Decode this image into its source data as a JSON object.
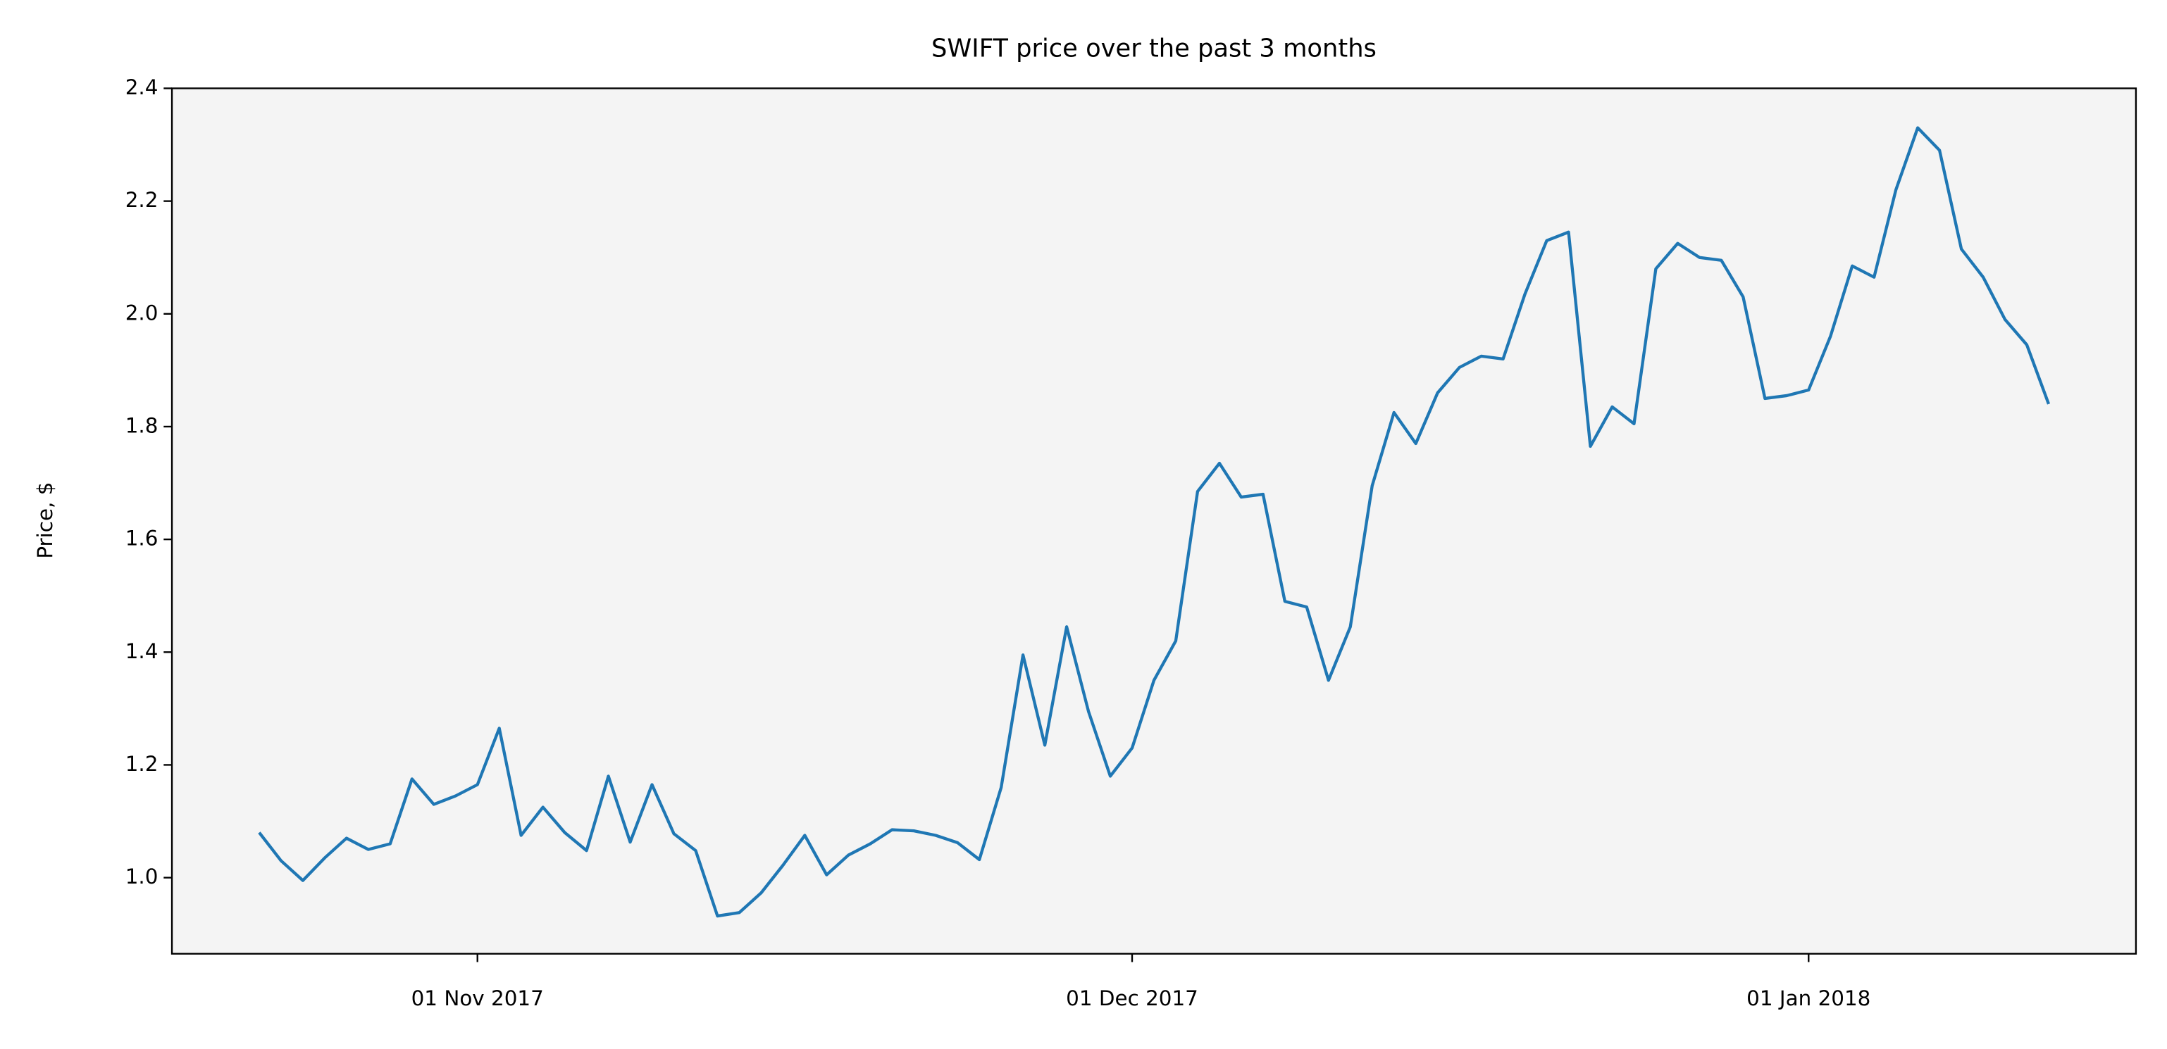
{
  "chart_data": {
    "type": "line",
    "title": "SWIFT price over the past 3 months",
    "ylabel": "Price, $",
    "x": [
      "2017-10-22",
      "2017-10-23",
      "2017-10-24",
      "2017-10-25",
      "2017-10-26",
      "2017-10-27",
      "2017-10-28",
      "2017-10-29",
      "2017-10-30",
      "2017-10-31",
      "2017-11-01",
      "2017-11-02",
      "2017-11-03",
      "2017-11-04",
      "2017-11-05",
      "2017-11-06",
      "2017-11-07",
      "2017-11-08",
      "2017-11-09",
      "2017-11-10",
      "2017-11-11",
      "2017-11-12",
      "2017-11-13",
      "2017-11-14",
      "2017-11-15",
      "2017-11-16",
      "2017-11-17",
      "2017-11-18",
      "2017-11-19",
      "2017-11-20",
      "2017-11-21",
      "2017-11-22",
      "2017-11-23",
      "2017-11-24",
      "2017-11-25",
      "2017-11-26",
      "2017-11-27",
      "2017-11-28",
      "2017-11-29",
      "2017-11-30",
      "2017-12-01",
      "2017-12-02",
      "2017-12-03",
      "2017-12-04",
      "2017-12-05",
      "2017-12-06",
      "2017-12-07",
      "2017-12-08",
      "2017-12-09",
      "2017-12-10",
      "2017-12-11",
      "2017-12-12",
      "2017-12-13",
      "2017-12-14",
      "2017-12-15",
      "2017-12-16",
      "2017-12-17",
      "2017-12-18",
      "2017-12-19",
      "2017-12-20",
      "2017-12-21",
      "2017-12-22",
      "2017-12-23",
      "2017-12-24",
      "2017-12-25",
      "2017-12-26",
      "2017-12-27",
      "2017-12-28",
      "2017-12-29",
      "2017-12-30",
      "2017-12-31",
      "2018-01-01",
      "2018-01-02",
      "2018-01-03",
      "2018-01-04",
      "2018-01-05",
      "2018-01-06",
      "2018-01-07",
      "2018-01-08",
      "2018-01-09",
      "2018-01-10",
      "2018-01-11",
      "2018-01-12"
    ],
    "series": [
      {
        "color": "#1f77b4",
        "values": [
          1.08,
          1.03,
          0.995,
          1.035,
          1.07,
          1.05,
          1.06,
          1.175,
          1.13,
          1.145,
          1.165,
          1.265,
          1.075,
          1.125,
          1.08,
          1.048,
          1.18,
          1.063,
          1.165,
          1.078,
          1.048,
          0.932,
          0.938,
          0.973,
          1.022,
          1.075,
          1.005,
          1.04,
          1.06,
          1.085,
          1.083,
          1.075,
          1.062,
          1.032,
          1.16,
          1.395,
          1.235,
          1.445,
          1.295,
          1.18,
          1.23,
          1.35,
          1.42,
          1.685,
          1.735,
          1.675,
          1.68,
          1.49,
          1.48,
          1.35,
          1.445,
          1.695,
          1.825,
          1.77,
          1.86,
          1.905,
          1.925,
          1.92,
          2.035,
          2.13,
          2.145,
          1.765,
          1.835,
          1.805,
          2.08,
          2.125,
          2.1,
          2.095,
          2.03,
          1.85,
          1.855,
          1.865,
          1.96,
          2.085,
          2.065,
          2.22,
          2.33,
          2.29,
          2.115,
          2.065,
          1.99,
          1.945,
          1.84
        ]
      }
    ],
    "xlim": [
      "2017-10-18",
      "2018-01-16"
    ],
    "xticks": [
      {
        "value": "2017-11-01",
        "label": "01 Nov 2017"
      },
      {
        "value": "2017-12-01",
        "label": "01 Dec 2017"
      },
      {
        "value": "2018-01-01",
        "label": "01 Jan 2018"
      }
    ],
    "ylim": [
      0.865,
      2.4
    ],
    "yticks": [
      {
        "value": 1.0,
        "label": "1.0"
      },
      {
        "value": 1.2,
        "label": "1.2"
      },
      {
        "value": 1.4,
        "label": "1.4"
      },
      {
        "value": 1.6,
        "label": "1.6"
      },
      {
        "value": 1.8,
        "label": "1.8"
      },
      {
        "value": 2.0,
        "label": "2.0"
      },
      {
        "value": 2.2,
        "label": "2.2"
      },
      {
        "value": 2.4,
        "label": "2.4"
      }
    ],
    "plot_background": "#f4f4f4"
  }
}
